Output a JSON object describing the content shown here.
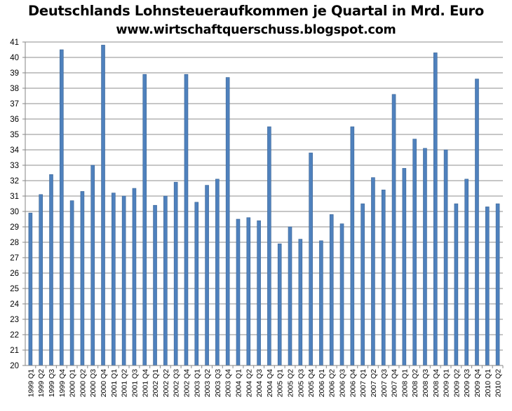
{
  "chart_data": {
    "type": "bar",
    "title": "Deutschlands Lohnsteueraufkommen je Quartal in Mrd. Euro",
    "subtitle": "www.wirtschaftquerschuss.blogspot.com",
    "xlabel": "",
    "ylabel": "",
    "ylim": [
      20,
      41
    ],
    "yticks": [
      "20",
      "21",
      "22",
      "23",
      "24",
      "25",
      "26",
      "27",
      "28",
      "29",
      "30",
      "31",
      "32",
      "33",
      "34",
      "35",
      "36",
      "37",
      "38",
      "39",
      "40",
      "41"
    ],
    "grid": true,
    "legend": "none",
    "categories": [
      "1999 Q1",
      "1999 Q2",
      "1999 Q3",
      "1999 Q4",
      "2000 Q1",
      "2000 Q2",
      "2000 Q3",
      "2000 Q4",
      "2001 Q1",
      "2001 Q2",
      "2001 Q3",
      "2001 Q4",
      "2002 Q1",
      "2002 Q2",
      "2002 Q3",
      "2002 Q4",
      "2003 Q1",
      "2003 Q2",
      "2003 Q3",
      "2003 Q4",
      "2004 Q1",
      "2004 Q2",
      "2004 Q3",
      "2004 Q4",
      "2005 Q1",
      "2005 Q2",
      "2005 Q3",
      "2005 Q4",
      "2006 Q1",
      "2006 Q2",
      "2006 Q3",
      "2006 Q4",
      "2007 Q1",
      "2007 Q2",
      "2007 Q3",
      "2007 Q4",
      "2008 Q1",
      "2008 Q2",
      "2008 Q3",
      "2008 Q4",
      "2009 Q1",
      "2009 Q2",
      "2009 Q3",
      "2009 Q4",
      "2010 Q1",
      "2010 Q2"
    ],
    "values": [
      29.9,
      31.1,
      32.4,
      40.5,
      30.7,
      31.3,
      33.0,
      40.8,
      31.2,
      31.0,
      31.5,
      38.9,
      30.4,
      31.0,
      31.9,
      38.9,
      30.6,
      31.7,
      32.1,
      38.7,
      29.5,
      29.6,
      29.4,
      35.5,
      27.9,
      29.0,
      28.2,
      33.8,
      28.1,
      29.8,
      29.2,
      35.5,
      30.5,
      32.2,
      31.4,
      37.6,
      32.8,
      34.7,
      34.1,
      40.3,
      34.0,
      30.5,
      32.1,
      38.6,
      30.3,
      30.5
    ],
    "colors": {
      "bar": "#4F81BD",
      "bar_edge": "#3A6494",
      "grid": "#8C8C8C",
      "axis": "#868686"
    }
  }
}
